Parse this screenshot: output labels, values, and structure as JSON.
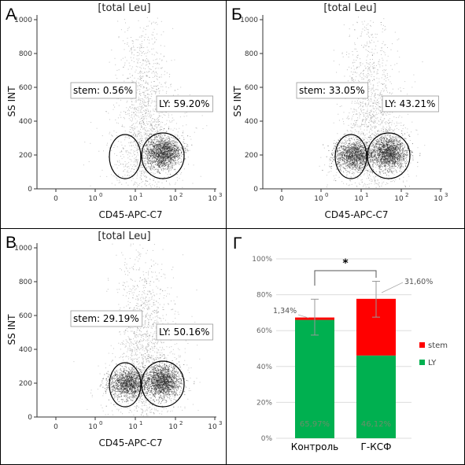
{
  "colors": {
    "stem": "#ff0000",
    "ly": "#00b050",
    "dots": "#222222",
    "gate": "#000000"
  },
  "panels": [
    {
      "label": "А",
      "title": "[total Leu]",
      "xlabel": "CD45-APC-C7",
      "ylabel": "SS INT",
      "yticks": [
        "0",
        "200",
        "400",
        "600",
        "800",
        "1000"
      ],
      "xticks": [
        "0",
        "10",
        "10",
        "10",
        "10"
      ],
      "xtick_exps": [
        "",
        "0",
        "1",
        "2",
        "3"
      ],
      "gates": [
        {
          "name": "stem",
          "text": "stem: 0.56%",
          "value": 0.56,
          "density": "empty"
        },
        {
          "name": "LY",
          "text": "LY: 59.20%",
          "value": 59.2,
          "density": "dense"
        }
      ]
    },
    {
      "label": "Б",
      "title": "[total Leu]",
      "xlabel": "CD45-APC-C7",
      "ylabel": "SS INT",
      "yticks": [
        "0",
        "200",
        "400",
        "600",
        "800",
        "1000"
      ],
      "xticks": [
        "0",
        "10",
        "10",
        "10",
        "10"
      ],
      "xtick_exps": [
        "",
        "0",
        "1",
        "2",
        "3"
      ],
      "gates": [
        {
          "name": "stem",
          "text": "stem: 33.05%",
          "value": 33.05,
          "density": "dense"
        },
        {
          "name": "LY",
          "text": "LY: 43.21%",
          "value": 43.21,
          "density": "dense"
        }
      ]
    },
    {
      "label": "В",
      "title": "[total Leu]",
      "xlabel": "CD45-APC-C7",
      "ylabel": "SS INT",
      "yticks": [
        "0",
        "200",
        "400",
        "600",
        "800",
        "1000"
      ],
      "xticks": [
        "0",
        "10",
        "10",
        "10",
        "10"
      ],
      "xtick_exps": [
        "",
        "0",
        "1",
        "2",
        "3"
      ],
      "gates": [
        {
          "name": "stem",
          "text": "stem: 29.19%",
          "value": 29.19,
          "density": "dense"
        },
        {
          "name": "LY",
          "text": "LY: 50.16%",
          "value": 50.16,
          "density": "dense"
        }
      ]
    }
  ],
  "bar_panel": {
    "label": "Г"
  },
  "chart_data": {
    "type": "bar",
    "stacked": true,
    "categories": [
      "Контроль",
      "Г-КСФ"
    ],
    "series": [
      {
        "name": "LY",
        "values": [
          65.97,
          46.12
        ],
        "labels": [
          "65,97%",
          "46,12%"
        ]
      },
      {
        "name": "stem",
        "values": [
          1.34,
          31.6
        ],
        "labels": [
          "1,34%",
          "31,60%"
        ]
      }
    ],
    "error_bars": [
      {
        "low": 57.5,
        "high": 77.5
      },
      {
        "low": 67.5,
        "high": 87.5
      }
    ],
    "yticks": [
      "0%",
      "20%",
      "40%",
      "60%",
      "80%",
      "100%"
    ],
    "ylim": [
      0,
      100
    ],
    "significance": "*",
    "legend": [
      "stem",
      "LY"
    ],
    "legend_position": "right",
    "grid": true
  }
}
